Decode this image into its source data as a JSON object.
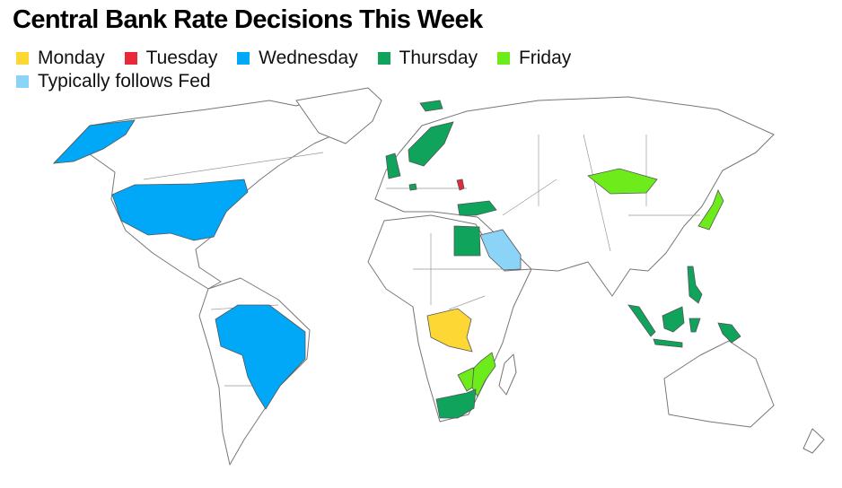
{
  "title": "Central Bank Rate Decisions This Week",
  "legend": [
    {
      "label": "Monday",
      "color": "#fdd835"
    },
    {
      "label": "Tuesday",
      "color": "#e8293a"
    },
    {
      "label": "Wednesday",
      "color": "#00a8f7"
    },
    {
      "label": "Thursday",
      "color": "#0fa35c"
    },
    {
      "label": "Friday",
      "color": "#6deb1a"
    },
    {
      "label": "Typically follows Fed",
      "color": "#8bd3f7"
    }
  ]
}
